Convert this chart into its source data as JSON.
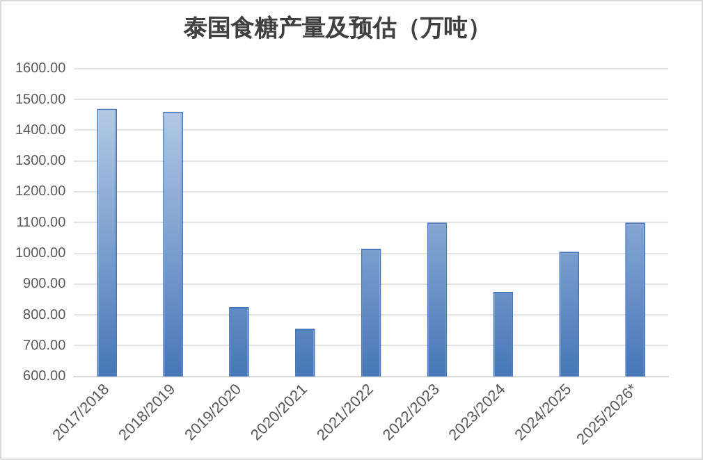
{
  "chart_data": {
    "type": "bar",
    "title": "泰国食糖产量及预估（万吨）",
    "categories": [
      "2017/2018",
      "2018/2019",
      "2019/2020",
      "2020/2021",
      "2021/2022",
      "2022/2023",
      "2023/2024",
      "2024/2025",
      "2025/2026*"
    ],
    "values": [
      1470,
      1460,
      825,
      755,
      1015,
      1100,
      875,
      1005,
      1100
    ],
    "color": "#4677b8",
    "ylim": [
      600,
      1600
    ],
    "yticks": [
      {
        "value": 600,
        "label": "600.00"
      },
      {
        "value": 700,
        "label": "700.00"
      },
      {
        "value": 800,
        "label": "800.00"
      },
      {
        "value": 900,
        "label": "900.00"
      },
      {
        "value": 1000,
        "label": "1000.00"
      },
      {
        "value": 1100,
        "label": "1100.00"
      },
      {
        "value": 1200,
        "label": "1200.00"
      },
      {
        "value": 1300,
        "label": "1300.00"
      },
      {
        "value": 1400,
        "label": "1400.00"
      },
      {
        "value": 1500,
        "label": "1500.00"
      },
      {
        "value": 1600,
        "label": "1600.00"
      }
    ],
    "grid": "y"
  }
}
